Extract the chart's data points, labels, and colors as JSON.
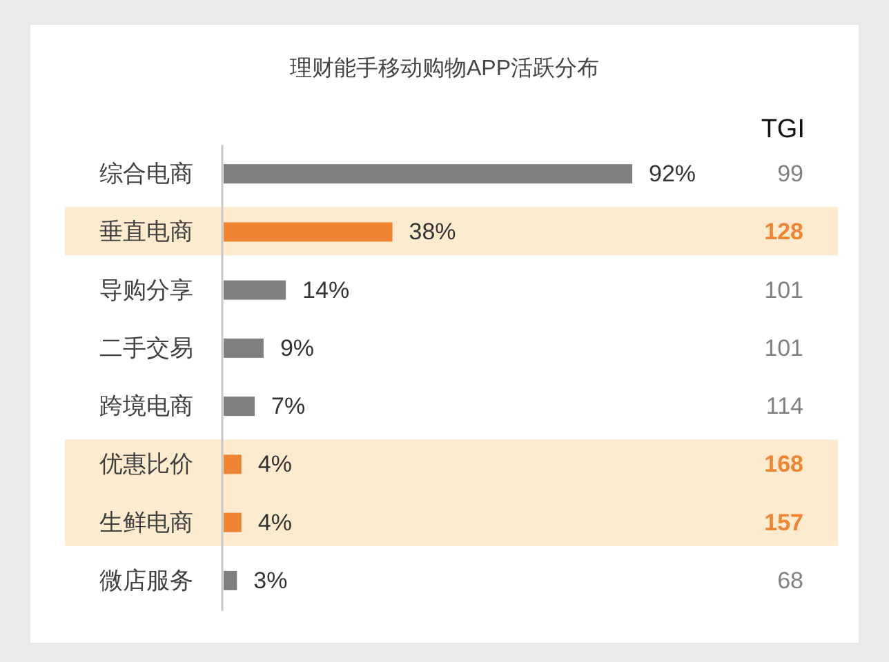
{
  "chart_data": {
    "type": "bar",
    "orientation": "horizontal",
    "title": "理财能手移动购物APP活跃分布",
    "categories": [
      "综合电商",
      "垂直电商",
      "导购分享",
      "二手交易",
      "跨境电商",
      "优惠比价",
      "生鲜电商",
      "微店服务"
    ],
    "values": [
      92,
      38,
      14,
      9,
      7,
      4,
      4,
      3
    ],
    "colors": [
      "#7f7f7f",
      "#ef8532",
      "#7f7f7f",
      "#7f7f7f",
      "#7f7f7f",
      "#ef8532",
      "#ef8532",
      "#7f7f7f"
    ],
    "value_labels": [
      "92%",
      "38%",
      "14%",
      "9%",
      "7%",
      "4%",
      "4%",
      "3%"
    ],
    "y2label": "TGI",
    "y2_categories": [
      "99",
      "128",
      "101",
      "101",
      "114",
      "168",
      "157",
      "68"
    ],
    "bands": [
      {
        "axis": "y",
        "from": "垂直电商",
        "to": "垂直电商",
        "color": "#fdebd0"
      },
      {
        "axis": "y",
        "from": "优惠比价",
        "to": "生鲜电商",
        "color": "#fdebd0"
      }
    ]
  }
}
